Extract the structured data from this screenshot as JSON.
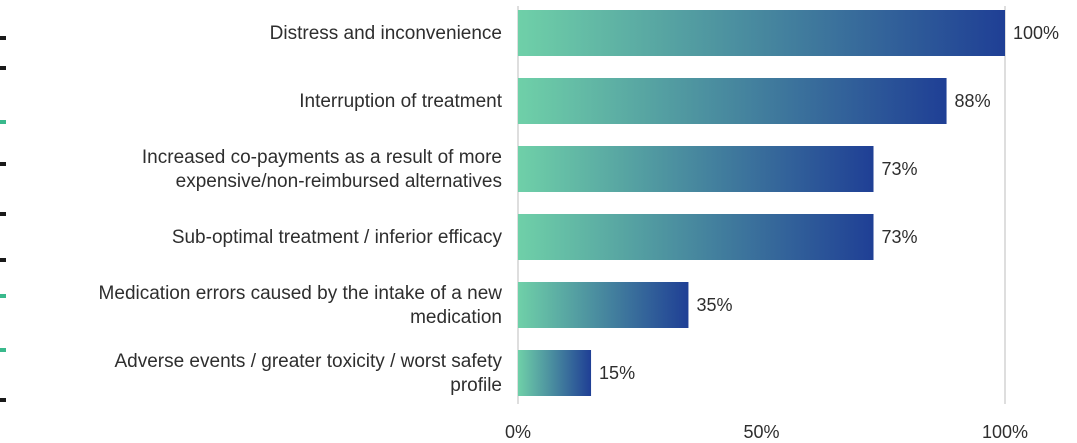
{
  "chart_data": {
    "type": "bar",
    "orientation": "horizontal",
    "categories": [
      [
        "Distress and inconvenience"
      ],
      [
        "Interruption of treatment"
      ],
      [
        "Increased co-payments as a result of more",
        "expensive/non-reimbursed alternatives"
      ],
      [
        "Sub-optimal treatment / inferior efficacy"
      ],
      [
        "Medication errors caused by the intake of a new",
        "medication"
      ],
      [
        "Adverse events / greater toxicity / worst safety",
        "profile"
      ]
    ],
    "values": [
      100,
      88,
      73,
      73,
      35,
      15
    ],
    "value_labels": [
      "100%",
      "88%",
      "73%",
      "73%",
      "35%",
      "15%"
    ],
    "xlim": [
      0,
      100
    ],
    "ticks": [
      0,
      50,
      100
    ],
    "tick_labels": [
      "0%",
      "50%",
      "100%"
    ],
    "grid": "vertical lines at 0% and 100%",
    "bar_gradient": [
      "#6fd0a8",
      "#1f3f95"
    ],
    "title": "",
    "xlabel": "",
    "ylabel": ""
  }
}
